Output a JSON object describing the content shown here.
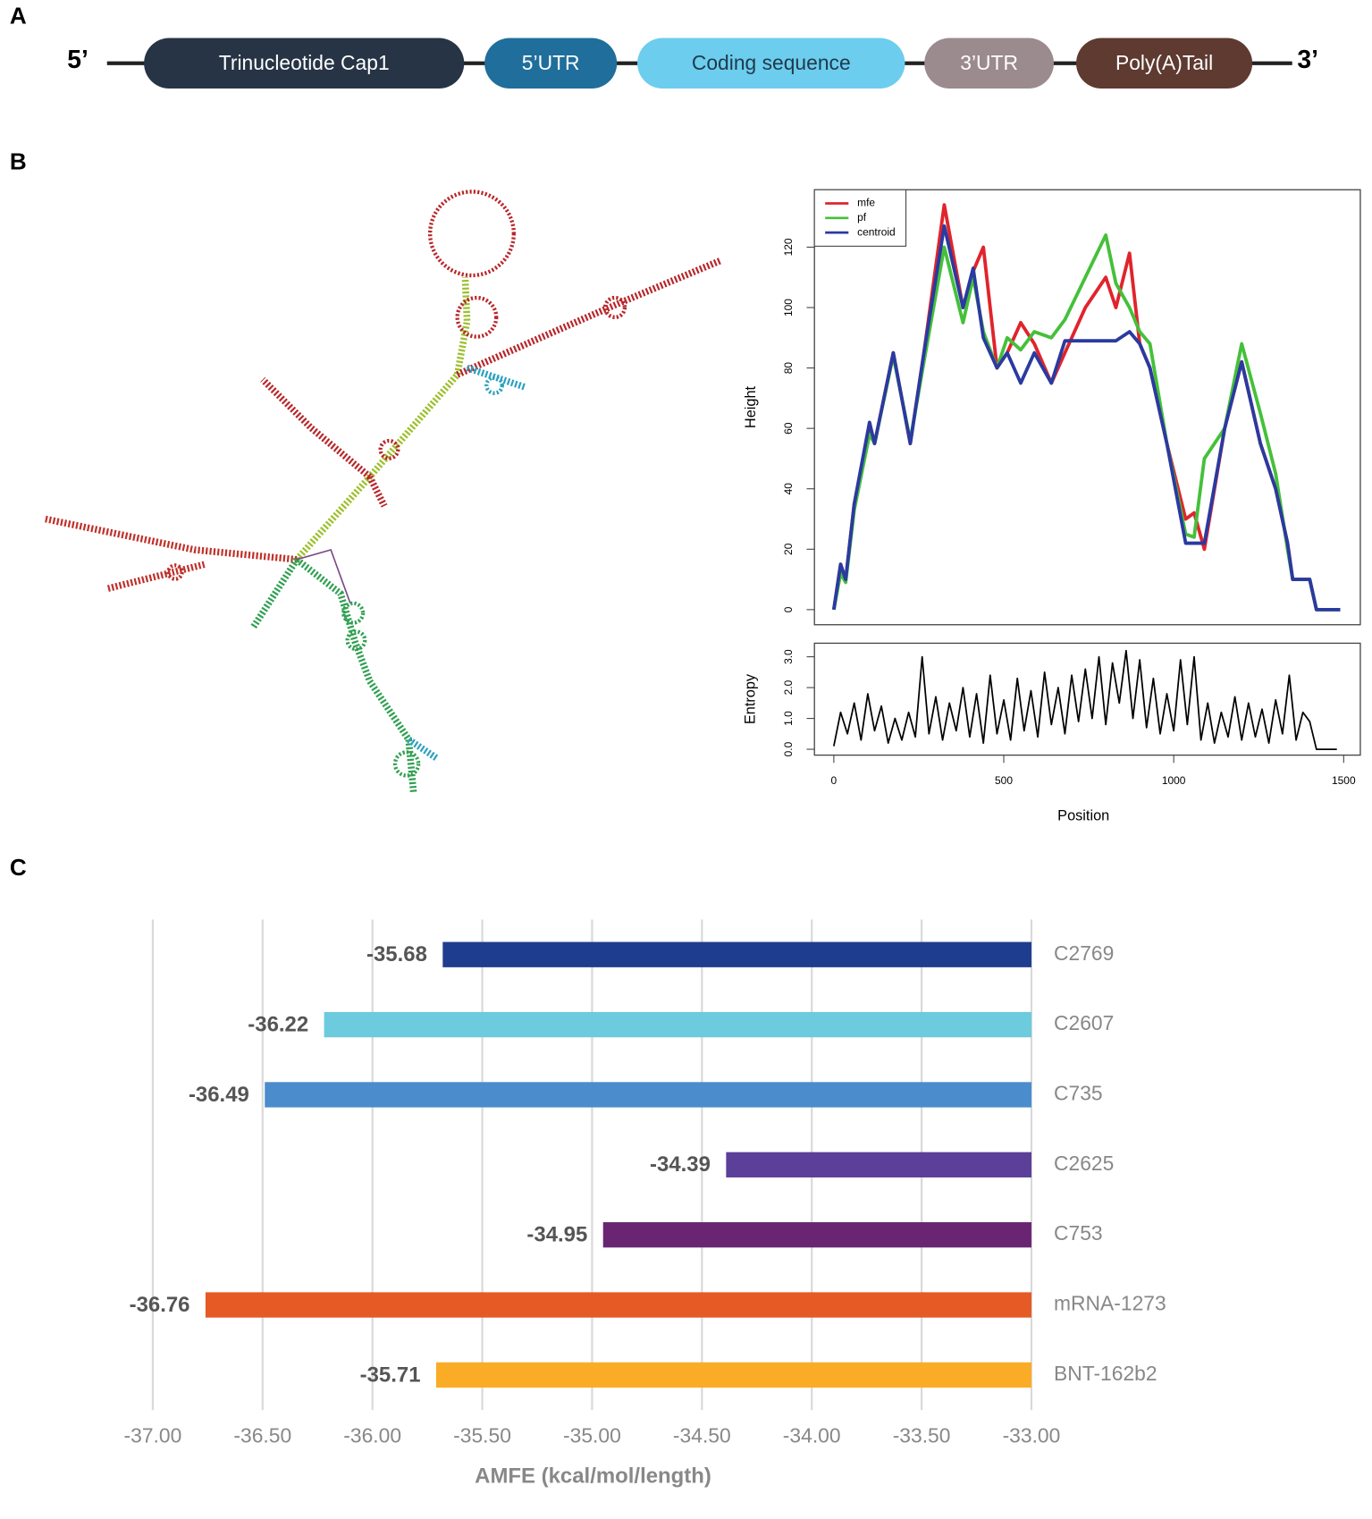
{
  "panel_labels": [
    "A",
    "B",
    "C"
  ],
  "diagram": {
    "five_prime": "5’",
    "three_prime": "3’",
    "segments": [
      {
        "label": "Trinucleotide Cap1",
        "color": "#263445",
        "text_color": "#ffffff"
      },
      {
        "label": "5’UTR",
        "color": "#1f6e9b",
        "text_color": "#ffffff"
      },
      {
        "label": "Coding sequence",
        "color": "#6ccdee",
        "text_color": "#1f3a4a"
      },
      {
        "label": "3’UTR",
        "color": "#9b8a8e",
        "text_color": "#ffffff"
      },
      {
        "label": "Poly(A)Tail",
        "color": "#5e3a30",
        "text_color": "#ffffff"
      }
    ]
  },
  "chart_data": [
    {
      "type": "line",
      "ylabel": "Height",
      "legend": "upper left",
      "xlim": [
        -57,
        1549
      ],
      "ylim": [
        -5,
        139
      ],
      "yticks": [
        0,
        20,
        40,
        60,
        80,
        100,
        120
      ],
      "x": [
        0,
        20,
        35,
        60,
        105,
        120,
        175,
        225,
        265,
        325,
        380,
        410,
        440,
        480,
        510,
        550,
        590,
        640,
        680,
        740,
        800,
        830,
        870,
        900,
        930,
        980,
        1035,
        1060,
        1090,
        1150,
        1200,
        1255,
        1300,
        1335,
        1350,
        1400,
        1420,
        1490
      ],
      "series": [
        {
          "name": "mfe",
          "color": "#e0242c",
          "values": [
            0,
            15,
            10,
            35,
            60,
            55,
            85,
            55,
            85,
            134,
            100,
            112,
            120,
            80,
            85,
            95,
            88,
            75,
            85,
            100,
            110,
            100,
            118,
            88,
            80,
            55,
            30,
            32,
            20,
            60,
            82,
            55,
            40,
            22,
            10,
            10,
            0,
            0
          ]
        },
        {
          "name": "pf",
          "color": "#45c03a",
          "values": [
            0,
            12,
            9,
            33,
            58,
            55,
            84,
            56,
            82,
            120,
            95,
            110,
            92,
            80,
            90,
            86,
            92,
            90,
            96,
            110,
            124,
            108,
            100,
            92,
            88,
            55,
            25,
            24,
            50,
            60,
            88,
            65,
            45,
            20,
            10,
            10,
            0,
            0
          ]
        },
        {
          "name": "centroid",
          "color": "#2a3aa0",
          "values": [
            0,
            15,
            10,
            35,
            62,
            55,
            85,
            55,
            85,
            127,
            100,
            113,
            90,
            80,
            85,
            75,
            85,
            75,
            89,
            89,
            89,
            89,
            92,
            88,
            80,
            55,
            22,
            22,
            22,
            60,
            82,
            55,
            40,
            22,
            10,
            10,
            0,
            0
          ]
        }
      ]
    },
    {
      "type": "line",
      "ylabel": "Entropy",
      "xlabel": "Position",
      "color": "#000000",
      "xlim": [
        -57,
        1549
      ],
      "ylim": [
        -0.19,
        3.44
      ],
      "xticks": [
        0,
        500,
        1000,
        1500
      ],
      "yticks": [
        {
          "value": 0,
          "label": "0.0"
        },
        {
          "value": 1,
          "label": "1.0"
        },
        {
          "value": 2,
          "label": "2.0"
        },
        {
          "value": 3,
          "label": "3.0"
        }
      ],
      "x": [
        0,
        20,
        40,
        60,
        80,
        100,
        120,
        140,
        160,
        180,
        200,
        220,
        240,
        260,
        280,
        300,
        320,
        340,
        360,
        380,
        400,
        420,
        440,
        460,
        480,
        500,
        520,
        540,
        560,
        580,
        600,
        620,
        640,
        660,
        680,
        700,
        720,
        740,
        760,
        780,
        800,
        820,
        840,
        860,
        880,
        900,
        920,
        940,
        960,
        980,
        1000,
        1020,
        1040,
        1060,
        1080,
        1100,
        1120,
        1140,
        1160,
        1180,
        1200,
        1220,
        1240,
        1260,
        1280,
        1300,
        1320,
        1340,
        1360,
        1380,
        1400,
        1420,
        1440,
        1460,
        1480
      ],
      "values": [
        0.1,
        1.2,
        0.5,
        1.5,
        0.3,
        1.8,
        0.6,
        1.4,
        0.2,
        1.0,
        0.3,
        1.2,
        0.4,
        3.0,
        0.5,
        1.7,
        0.3,
        1.5,
        0.6,
        2.0,
        0.4,
        1.8,
        0.2,
        2.4,
        0.5,
        1.6,
        0.3,
        2.3,
        0.6,
        1.9,
        0.4,
        2.5,
        0.8,
        2.0,
        0.5,
        2.4,
        0.9,
        2.6,
        1.0,
        3.0,
        0.8,
        2.8,
        1.5,
        3.2,
        1.0,
        2.9,
        0.7,
        2.3,
        0.5,
        1.8,
        0.6,
        2.9,
        0.8,
        3.0,
        0.3,
        1.5,
        0.2,
        1.2,
        0.4,
        1.7,
        0.3,
        1.5,
        0.4,
        1.3,
        0.2,
        1.6,
        0.5,
        2.4,
        0.3,
        1.2,
        0.9,
        0.0,
        0.0,
        0.0,
        0.0
      ]
    },
    {
      "type": "bar",
      "horizontal": true,
      "xlabel": "AMFE (kcal/mol/length)",
      "grid": true,
      "categories": [
        "C2769",
        "C2607",
        "C735",
        "C2625",
        "C753",
        "mRNA-1273",
        "BNT-162b2"
      ],
      "values": [
        -35.68,
        -36.22,
        -36.49,
        -34.39,
        -34.95,
        -36.76,
        -35.71
      ],
      "colors": [
        "#1f3d8f",
        "#6ccbdc",
        "#4a8ccc",
        "#5b3f98",
        "#6a2572",
        "#e55a25",
        "#fbac27"
      ],
      "xlim": [
        -37,
        -33
      ],
      "xticks": [
        {
          "value": -37,
          "label": "-37.00"
        },
        {
          "value": -36.5,
          "label": "-36.50"
        },
        {
          "value": -36,
          "label": "-36.00"
        },
        {
          "value": -35.5,
          "label": "-35.50"
        },
        {
          "value": -35,
          "label": "-35.00"
        },
        {
          "value": -34.5,
          "label": "-34.50"
        },
        {
          "value": -34,
          "label": "-34.00"
        },
        {
          "value": -33.5,
          "label": "-33.50"
        },
        {
          "value": -33,
          "label": "-33.00"
        }
      ]
    }
  ]
}
